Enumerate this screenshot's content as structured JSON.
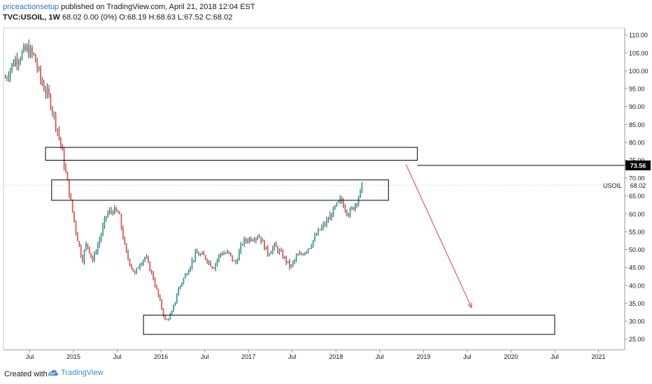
{
  "header": {
    "author": "priceactionsetup",
    "published": " published on TradingView.com, April 21, 2018 12:04 EST",
    "symbol": "TVC:USOIL, 1W",
    "ohlc": " 68.02 0.00 (0%) O:68.19 H:68.63 L:67.52 C:68.02"
  },
  "footer": {
    "created": "Created with",
    "brand": "TradingView"
  },
  "colors": {
    "up": "#26a69a",
    "down": "#ef5350",
    "wick": "#2b2b2b",
    "arrow": "#f23645",
    "box": "#000000",
    "axis": "#9598a1"
  },
  "chart_data": {
    "type": "candlestick",
    "symbol": "USOIL",
    "interval": "1W",
    "last_price": "68.02",
    "marked_level": "73.56",
    "y_ticks": [
      "25.00",
      "30.00",
      "35.00",
      "40.00",
      "45.00",
      "50.00",
      "55.00",
      "60.00",
      "65.00",
      "70.00",
      "75.00",
      "80.00",
      "85.00",
      "90.00",
      "95.00",
      "100.00",
      "105.00",
      "110.00"
    ],
    "ylim": [
      22,
      112
    ],
    "x_ticks": [
      {
        "label": "Jul",
        "t": 2014.5
      },
      {
        "label": "2015",
        "t": 2015.0
      },
      {
        "label": "Jul",
        "t": 2015.5
      },
      {
        "label": "2016",
        "t": 2016.0
      },
      {
        "label": "Jul",
        "t": 2016.5
      },
      {
        "label": "2017",
        "t": 2017.0
      },
      {
        "label": "Jul",
        "t": 2017.5
      },
      {
        "label": "2018",
        "t": 2018.0
      },
      {
        "label": "Jul",
        "t": 2018.5
      },
      {
        "label": "2019",
        "t": 2019.0
      },
      {
        "label": "Jul",
        "t": 2019.5
      },
      {
        "label": "2020",
        "t": 2020.0
      },
      {
        "label": "Jul",
        "t": 2020.5
      },
      {
        "label": "2021",
        "t": 2021.0
      }
    ],
    "anchors": [
      [
        2014.22,
        98
      ],
      [
        2014.33,
        103
      ],
      [
        2014.47,
        106
      ],
      [
        2014.55,
        104
      ],
      [
        2014.63,
        97
      ],
      [
        2014.73,
        92
      ],
      [
        2014.85,
        80
      ],
      [
        2014.95,
        66
      ],
      [
        2015.03,
        55
      ],
      [
        2015.1,
        47
      ],
      [
        2015.15,
        52
      ],
      [
        2015.22,
        47
      ],
      [
        2015.3,
        53
      ],
      [
        2015.38,
        60
      ],
      [
        2015.45,
        61
      ],
      [
        2015.52,
        60
      ],
      [
        2015.6,
        49
      ],
      [
        2015.65,
        46
      ],
      [
        2015.7,
        43
      ],
      [
        2015.75,
        46
      ],
      [
        2015.82,
        48
      ],
      [
        2015.9,
        43
      ],
      [
        2015.97,
        37
      ],
      [
        2016.05,
        30
      ],
      [
        2016.12,
        32
      ],
      [
        2016.2,
        39
      ],
      [
        2016.3,
        44
      ],
      [
        2016.4,
        49
      ],
      [
        2016.5,
        48
      ],
      [
        2016.6,
        45
      ],
      [
        2016.68,
        49
      ],
      [
        2016.77,
        49
      ],
      [
        2016.85,
        46
      ],
      [
        2016.93,
        52
      ],
      [
        2017.0,
        53
      ],
      [
        2017.12,
        54
      ],
      [
        2017.22,
        49
      ],
      [
        2017.3,
        51
      ],
      [
        2017.4,
        48
      ],
      [
        2017.48,
        45
      ],
      [
        2017.55,
        48
      ],
      [
        2017.62,
        49
      ],
      [
        2017.7,
        51
      ],
      [
        2017.8,
        55
      ],
      [
        2017.9,
        58
      ],
      [
        2018.0,
        62
      ],
      [
        2018.06,
        64
      ],
      [
        2018.1,
        62
      ],
      [
        2018.15,
        60
      ],
      [
        2018.2,
        62
      ],
      [
        2018.24,
        64
      ],
      [
        2018.28,
        66
      ],
      [
        2018.3,
        68
      ]
    ],
    "annotations": {
      "zones": [
        {
          "t0": 2014.68,
          "t1": 2018.93,
          "p0": 75.0,
          "p1": 78.6
        },
        {
          "t0": 2014.75,
          "t1": 2018.6,
          "p0": 63.8,
          "p1": 69.5
        },
        {
          "t0": 2015.8,
          "t1": 2020.5,
          "p0": 26.3,
          "p1": 31.7
        }
      ],
      "level_line": {
        "t0": 2018.93,
        "p": 73.56
      },
      "arrow": {
        "t0": 2018.8,
        "p0": 73.8,
        "t1": 2019.55,
        "p1": 33.8
      },
      "label": "USOIL"
    }
  }
}
